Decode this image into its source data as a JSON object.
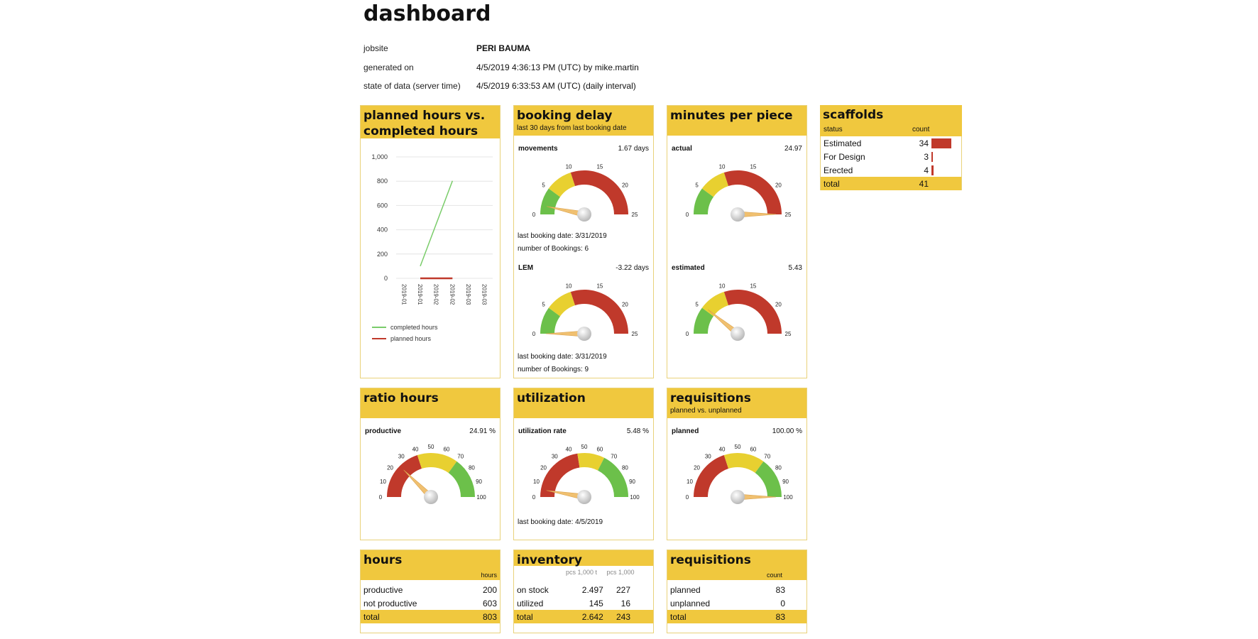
{
  "page": {
    "title": "dashboard",
    "meta": [
      {
        "label": "jobsite",
        "value": "PERI BAUMA"
      },
      {
        "label": "generated on",
        "value": "4/5/2019 4:36:13 PM (UTC) by mike.martin"
      },
      {
        "label": "state of data (server time)",
        "value": "4/5/2019 6:33:53 AM (UTC) (daily interval)"
      }
    ]
  },
  "colors": {
    "header": "#f0c83e",
    "green": "#6cc04a",
    "yellow": "#e8d030",
    "red": "#c0392b",
    "needle": "#f0c070"
  },
  "planned_vs_completed": {
    "title_line1": "planned hours vs.",
    "title_line2": "completed hours",
    "legend": [
      "completed hours",
      "planned hours"
    ]
  },
  "chart_data": {
    "type": "line",
    "x": [
      "2019-01",
      "2019-01",
      "2019-02",
      "2019-02",
      "2019-03",
      "2019-03"
    ],
    "series": [
      {
        "name": "completed hours",
        "color": "#7acc6a",
        "points": [
          [
            1,
            100
          ],
          [
            3,
            803
          ]
        ]
      },
      {
        "name": "planned hours",
        "color": "#c0392b",
        "points": [
          [
            1,
            0
          ],
          [
            3,
            0
          ]
        ]
      }
    ],
    "yticks": [
      "1,000",
      "800",
      "600",
      "400",
      "200",
      "0"
    ],
    "ylim": [
      0,
      1000
    ]
  },
  "booking_delay": {
    "title": "booking delay",
    "subtitle": "last 30 days from last booking date",
    "gauges": [
      {
        "label": "movements",
        "value_text": "1.67 days",
        "value": 1.67,
        "info": [
          "last booking date: 3/31/2019",
          "number of Bookings: 6"
        ]
      },
      {
        "label": "LEM",
        "value_text": "-3.22 days",
        "value": -3.22,
        "info": [
          "last booking date: 3/31/2019",
          "number of Bookings: 9"
        ]
      }
    ],
    "ticks": [
      "0",
      "5",
      "10",
      "15",
      "20",
      "25"
    ]
  },
  "minutes_per_piece": {
    "title": "minutes per piece",
    "gauges": [
      {
        "label": "actual",
        "value_text": "24.97",
        "value": 24.97
      },
      {
        "label": "estimated",
        "value_text": "5.43",
        "value": 5.43
      }
    ],
    "ticks": [
      "0",
      "5",
      "10",
      "15",
      "20",
      "25"
    ]
  },
  "scaffolds": {
    "title": "scaffolds",
    "col_status": "status",
    "col_count": "count",
    "rows": [
      {
        "status": "Estimated",
        "count": "34",
        "value": 34
      },
      {
        "status": "For Design",
        "count": "3",
        "value": 3
      },
      {
        "status": "Erected",
        "count": "4",
        "value": 4
      }
    ],
    "total_label": "total",
    "total": "41"
  },
  "ratio_hours": {
    "title": "ratio hours",
    "label": "productive",
    "value_text": "24.91 %",
    "value": 24.91
  },
  "utilization": {
    "title": "utilization",
    "label": "utilization rate",
    "value_text": "5.48 %",
    "value": 5.48,
    "info": "last booking date: 4/5/2019"
  },
  "requisitions_gauge": {
    "title": "requisitions",
    "subtitle": "planned vs. unplanned",
    "label": "planned",
    "value_text": "100.00 %",
    "value": 100
  },
  "pct_ticks": [
    "0",
    "10",
    "20",
    "30",
    "40",
    "50",
    "60",
    "70",
    "80",
    "90",
    "100"
  ],
  "hours_table": {
    "title": "hours",
    "col": "hours",
    "rows": [
      {
        "label": "productive",
        "value": "200"
      },
      {
        "label": "not productive",
        "value": "603"
      }
    ],
    "total_label": "total",
    "total": "803"
  },
  "inventory_table": {
    "title": "inventory",
    "col1": "pcs 1,000 t",
    "col2": "pcs 1,000",
    "rows": [
      {
        "label": "on stock",
        "v1": "2.497",
        "v2": "227"
      },
      {
        "label": "utilized",
        "v1": "145",
        "v2": "16"
      }
    ],
    "total_label": "total",
    "total1": "2.642",
    "total2": "243"
  },
  "requisitions_table": {
    "title": "requisitions",
    "col": "count",
    "rows": [
      {
        "label": "planned",
        "value": "83"
      },
      {
        "label": "unplanned",
        "value": "0"
      }
    ],
    "total_label": "total",
    "total": "83"
  }
}
